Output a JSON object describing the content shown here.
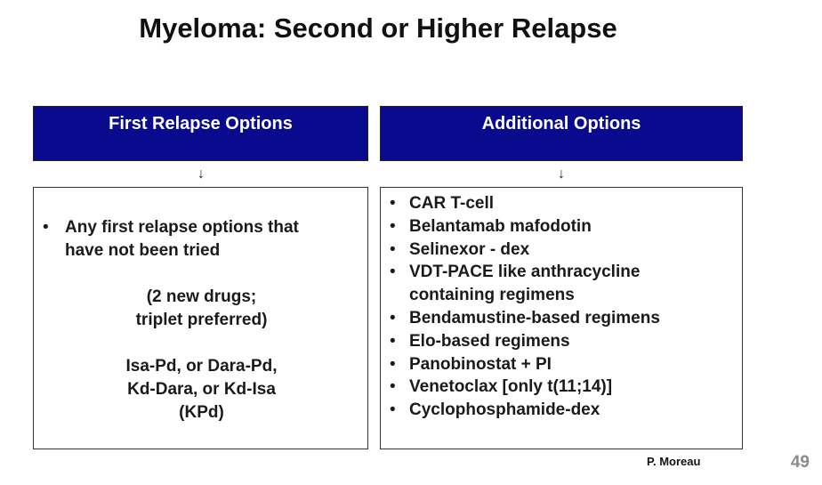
{
  "title": "Myeloma: Second or Higher Relapse",
  "left_column": {
    "header": "First Relapse Options",
    "arrow": "↓",
    "bullet": "•",
    "bullet_text_line1": "Any first relapse options that",
    "bullet_text_line2": "have not been tried",
    "note_line1": "(2 new drugs;",
    "note_line2": "triplet preferred)",
    "regimens_line1": "Isa-Pd, or Dara-Pd,",
    "regimens_line2": "Kd-Dara, or Kd-Isa",
    "regimens_line3": "(KPd)"
  },
  "right_column": {
    "header": "Additional Options",
    "arrow": "↓",
    "bullet": "•",
    "items": [
      "CAR T-cell",
      "Belantamab mafodotin",
      "Selinexor - dex",
      "VDT-PACE like anthracycline",
      "Bendamustine-based regimens",
      "Elo-based regimens",
      "Panobinostat + PI",
      "Venetoclax [only t(11;14)]",
      "Cyclophosphamide-dex"
    ],
    "item_4_continuation": "containing regimens"
  },
  "footer": {
    "author": "P. Moreau",
    "slide_number": "49"
  },
  "colors": {
    "header_bg": "#0a0a8f",
    "header_text": "#ffffff",
    "slide_number": "#8a8a8a"
  }
}
